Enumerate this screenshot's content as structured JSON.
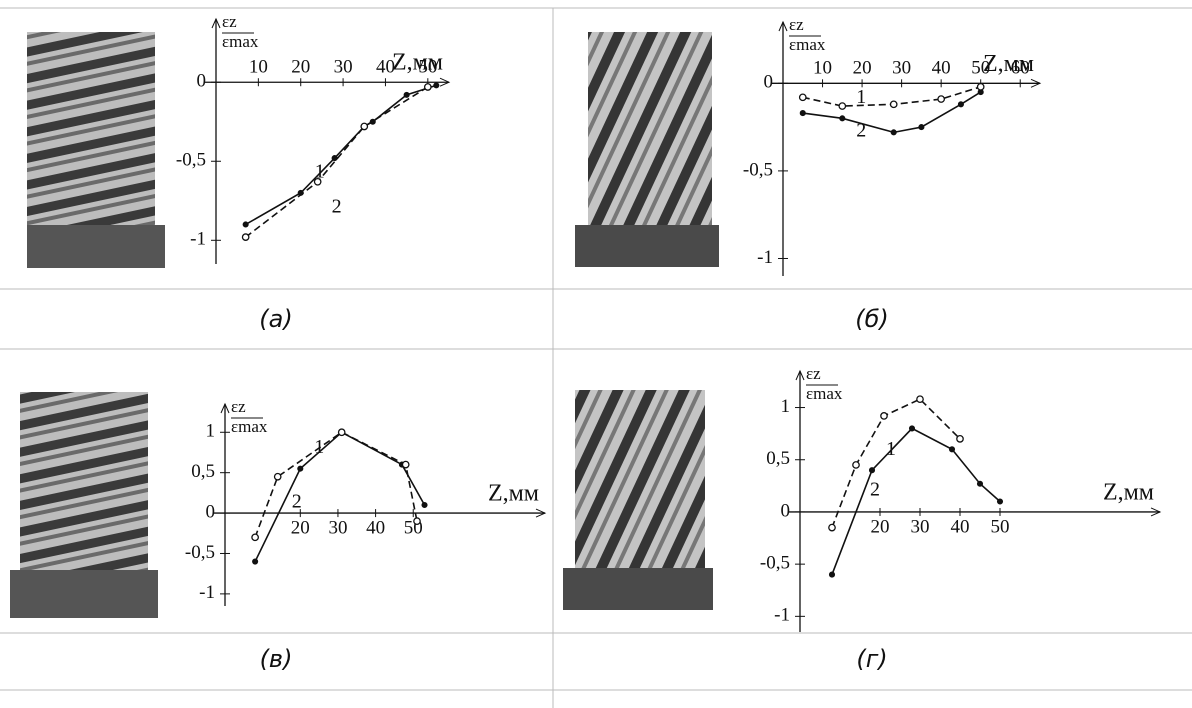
{
  "chart_data": [
    {
      "type": "line",
      "caption": "(а)",
      "ylabel": [
        "εz",
        "εmax"
      ],
      "xlabel": "Z,мм",
      "xlim": [
        0,
        55
      ],
      "xticks": [
        10,
        20,
        30,
        40,
        50
      ],
      "ylim": [
        -1.15,
        0.4
      ],
      "yticks": [
        -1,
        {
          "value": -0.5,
          "label": "-0,5"
        },
        0
      ],
      "series": [
        {
          "name": "1",
          "color": "#111",
          "style": "solid",
          "x": [
            7,
            20,
            28,
            35,
            37,
            45,
            52
          ],
          "values": [
            -0.9,
            -0.7,
            -0.48,
            -0.28,
            -0.25,
            -0.08,
            -0.02
          ]
        },
        {
          "name": "2",
          "color": "#111",
          "style": "dashed",
          "x": [
            7,
            24,
            35,
            50
          ],
          "values": [
            -0.98,
            -0.63,
            -0.28,
            -0.03
          ]
        }
      ]
    },
    {
      "type": "line",
      "caption": "(б)",
      "ylabel": [
        "εz",
        "εmax"
      ],
      "xlabel": "Z,мм",
      "xlim": [
        0,
        65
      ],
      "xticks": [
        10,
        20,
        30,
        40,
        50,
        60
      ],
      "ylim": [
        -1.1,
        0.35
      ],
      "yticks": [
        -1,
        {
          "value": -0.5,
          "label": "-0,5"
        },
        0
      ],
      "series": [
        {
          "name": "1",
          "color": "#111",
          "style": "solid",
          "x": [
            5,
            15,
            28,
            35,
            45,
            50
          ],
          "values": [
            -0.17,
            -0.2,
            -0.28,
            -0.25,
            -0.12,
            -0.05
          ]
        },
        {
          "name": "2",
          "color": "#111",
          "style": "dashed",
          "x": [
            5,
            15,
            28,
            40,
            50
          ],
          "values": [
            -0.08,
            -0.13,
            -0.12,
            -0.09,
            -0.02
          ]
        }
      ]
    },
    {
      "type": "line",
      "caption": "(в)",
      "ylabel": [
        "εz",
        "εmax"
      ],
      "xlabel": "Z,мм",
      "xlim": [
        0,
        85
      ],
      "xticks": [
        20,
        30,
        40,
        50
      ],
      "ylim": [
        -1.15,
        1.35
      ],
      "yticks": [
        -1,
        {
          "value": -0.5,
          "label": "-0,5"
        },
        0,
        {
          "value": 0.5,
          "label": "0,5"
        },
        1
      ],
      "series": [
        {
          "name": "1",
          "color": "#111",
          "style": "solid",
          "x": [
            8,
            20,
            31,
            47,
            53
          ],
          "values": [
            -0.6,
            0.55,
            1.0,
            0.6,
            0.1
          ]
        },
        {
          "name": "2",
          "color": "#111",
          "style": "dashed",
          "x": [
            8,
            14,
            31,
            48,
            51
          ],
          "values": [
            -0.3,
            0.45,
            1.0,
            0.6,
            -0.1
          ]
        }
      ]
    },
    {
      "type": "line",
      "caption": "(г)",
      "ylabel": [
        "εz",
        "εmax"
      ],
      "xlabel": "Z,мм",
      "xlim": [
        0,
        90
      ],
      "xticks": [
        20,
        30,
        40,
        50
      ],
      "ylim": [
        -1.15,
        1.35
      ],
      "yticks": [
        -1,
        {
          "value": -0.5,
          "label": "-0,5"
        },
        0,
        {
          "value": 0.5,
          "label": "0,5"
        },
        1
      ],
      "series": [
        {
          "name": "1",
          "color": "#111",
          "style": "solid",
          "x": [
            8,
            18,
            28,
            38,
            45,
            50
          ],
          "values": [
            -0.6,
            0.4,
            0.8,
            0.6,
            0.27,
            0.1
          ]
        },
        {
          "name": "2",
          "color": "#111",
          "style": "dashed",
          "x": [
            8,
            14,
            21,
            30,
            40
          ],
          "values": [
            -0.15,
            0.45,
            0.92,
            1.08,
            0.7
          ]
        }
      ]
    }
  ]
}
